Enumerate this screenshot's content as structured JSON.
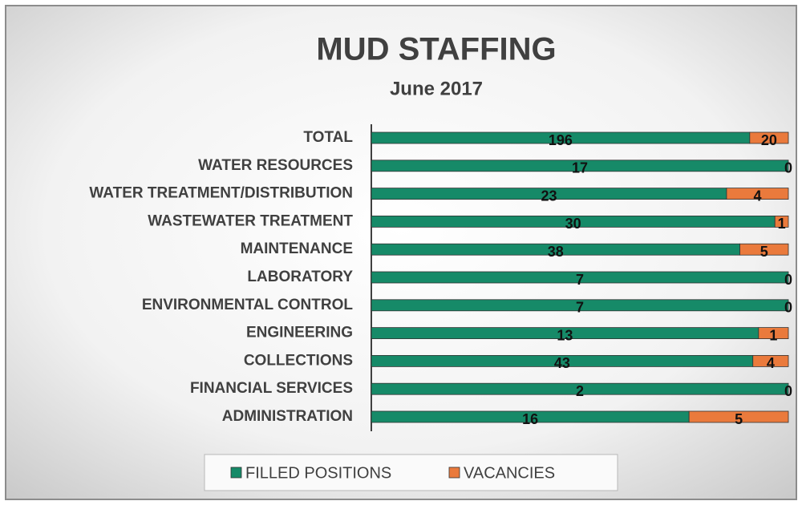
{
  "chart_data": {
    "type": "bar",
    "orientation": "horizontal",
    "stacking": "percent",
    "title": "MUD STAFFING",
    "subtitle": "June 2017",
    "categories": [
      "TOTAL",
      "WATER RESOURCES",
      "WATER TREATMENT/DISTRIBUTION",
      "WASTEWATER TREATMENT",
      "MAINTENANCE",
      "LABORATORY",
      "ENVIRONMENTAL CONTROL",
      "ENGINEERING",
      "COLLECTIONS",
      "FINANCIAL SERVICES",
      "ADMINISTRATION"
    ],
    "series": [
      {
        "name": "FILLED POSITIONS",
        "color": "#168a68",
        "values": [
          196,
          17,
          23,
          30,
          38,
          7,
          7,
          13,
          43,
          2,
          16
        ]
      },
      {
        "name": "VACANCIES",
        "color": "#ea7a3c",
        "values": [
          20,
          0,
          4,
          1,
          5,
          0,
          0,
          1,
          4,
          0,
          5
        ]
      }
    ],
    "legend": "bottom"
  }
}
